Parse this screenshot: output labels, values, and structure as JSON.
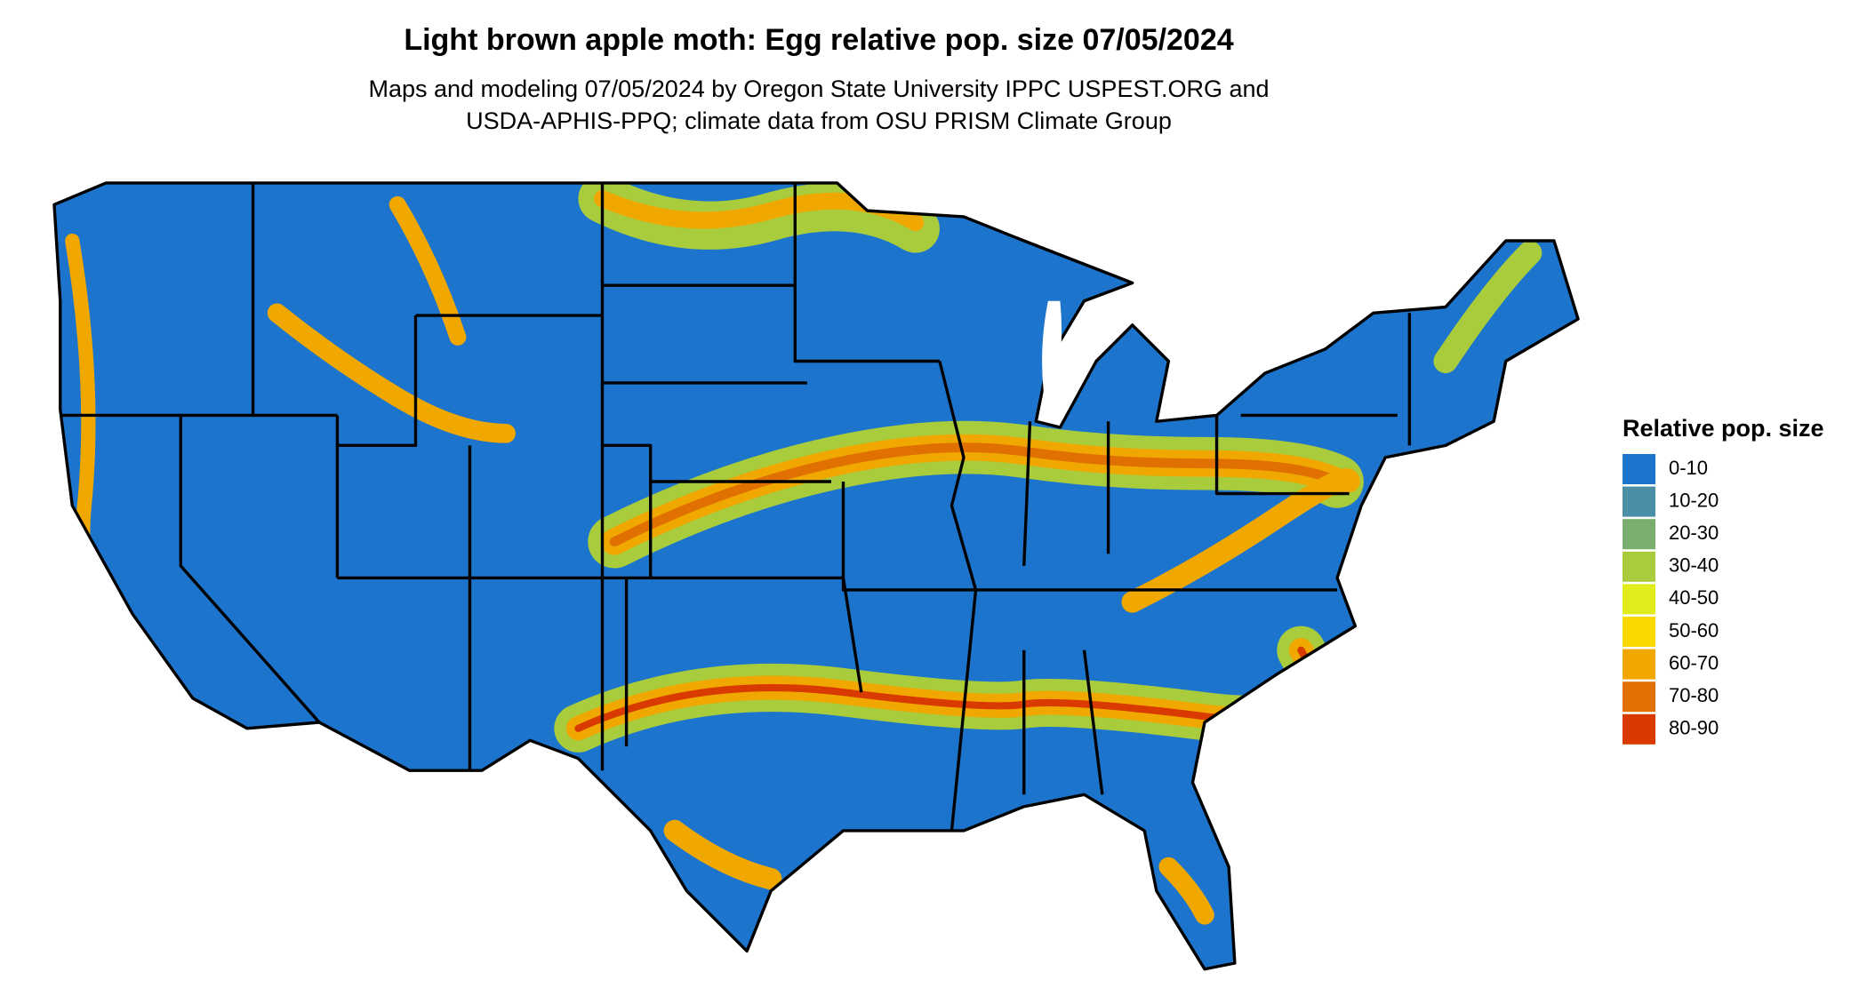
{
  "header": {
    "title": "Light brown apple moth: Egg relative pop. size 07/05/2024",
    "subtitle": [
      "Maps and modeling 07/05/2024 by Oregon State University IPPC USPEST.ORG and",
      "USDA-APHIS-PPQ; climate data from OSU PRISM Climate Group"
    ]
  },
  "legend": {
    "title": "Relative pop. size",
    "items": [
      {
        "label": "0-10",
        "color": "#1c74cc"
      },
      {
        "label": "10-20",
        "color": "#4a8fa6"
      },
      {
        "label": "20-30",
        "color": "#7aae6e"
      },
      {
        "label": "30-40",
        "color": "#a9cc3c"
      },
      {
        "label": "40-50",
        "color": "#e0ec1c"
      },
      {
        "label": "50-60",
        "color": "#f8da00"
      },
      {
        "label": "60-70",
        "color": "#f0a800"
      },
      {
        "label": "70-80",
        "color": "#e07000"
      },
      {
        "label": "80-90",
        "color": "#d83a00"
      }
    ]
  }
}
